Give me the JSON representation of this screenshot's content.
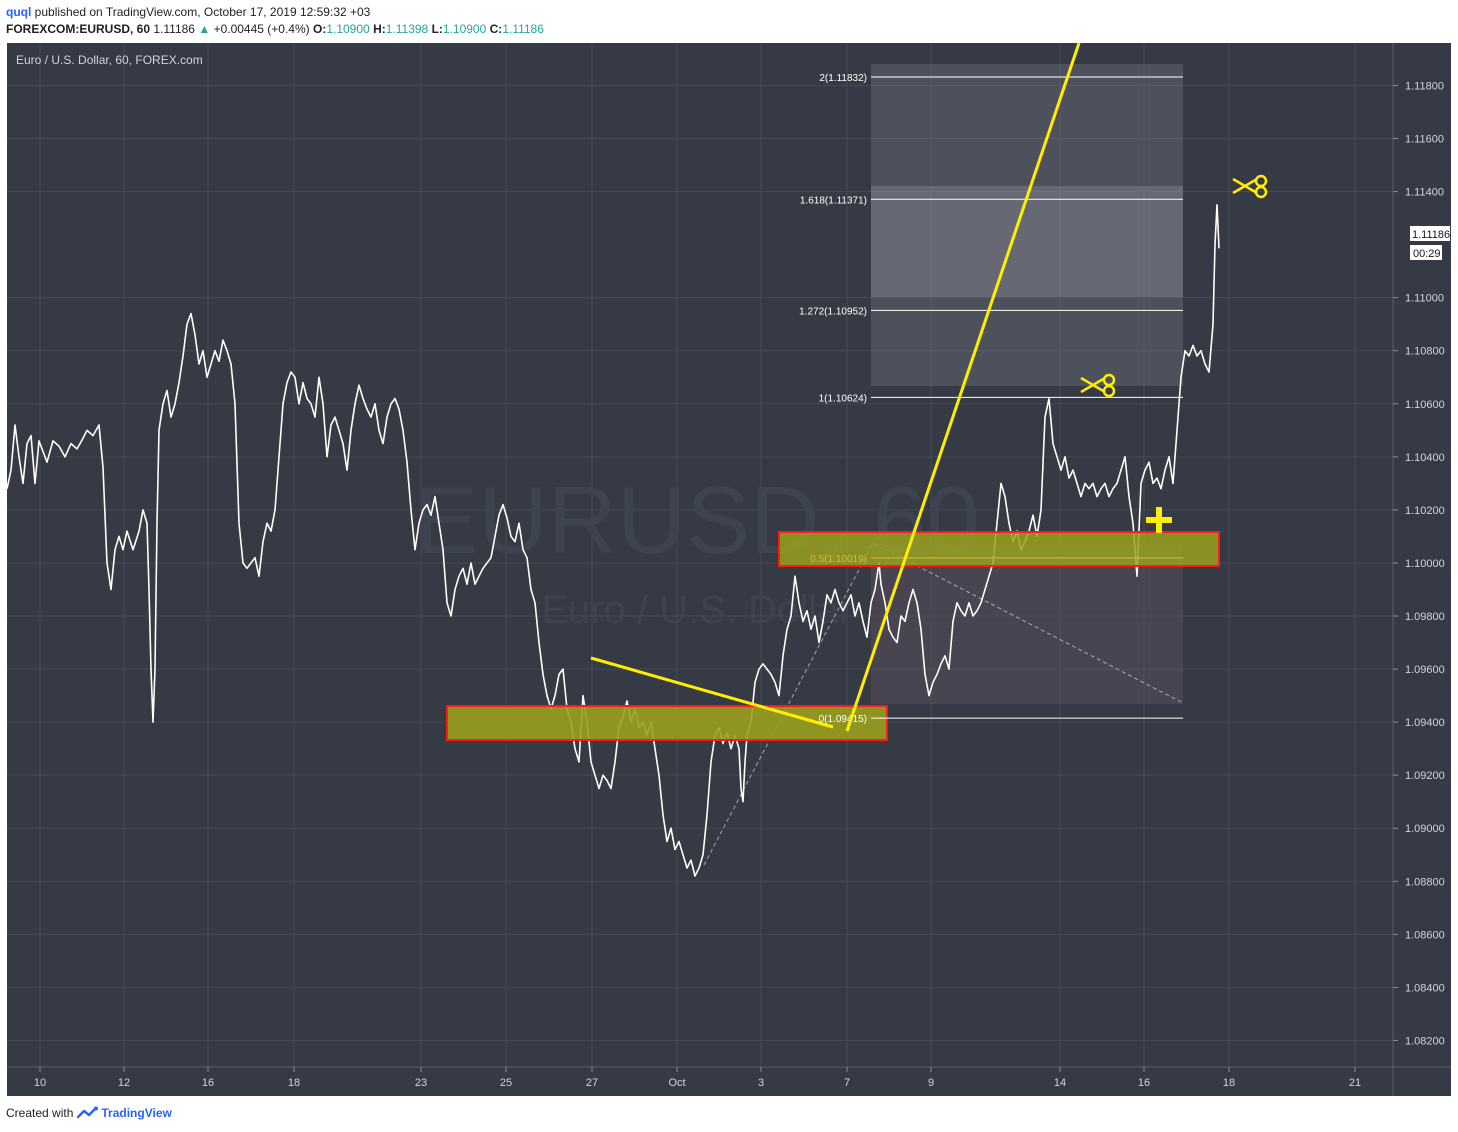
{
  "header": {
    "author": "quql",
    "published_text": "published on TradingView.com, October 17, 2019 12:59:32 +03",
    "symbol": "FOREXCOM:EURUSD, 60",
    "last": "1.11186",
    "change": "+0.00445 (+0.4%)",
    "o_label": "O:",
    "o_value": "1.10900",
    "h_label": "H:",
    "h_value": "1.11398",
    "l_label": "L:",
    "l_value": "1.10900",
    "c_label": "C:",
    "c_value": "1.11186"
  },
  "watermark": {
    "big": "EURUSD, 60",
    "small": "Euro / U.S. Dollar"
  },
  "footer": {
    "created_with": "Created with",
    "brand": "TradingView",
    "logo_icon": "tradingview-logo-icon"
  },
  "colors": {
    "bg": "#363a45",
    "grid": "#4a4f5b",
    "price": "#ffffff",
    "yellow": "#ffee00",
    "zone_fill": "#9aa01e",
    "zone_border": "#ff1a1a"
  },
  "chart_data": {
    "type": "line",
    "title": "Euro / U.S. Dollar, 60, FOREX.com",
    "ylim": [
      1.081,
      1.1196
    ],
    "y_ticks": [
      "1.11800",
      "1.11600",
      "1.11400",
      "1.11000",
      "1.10800",
      "1.10600",
      "1.10400",
      "1.10200",
      "1.10000",
      "1.09800",
      "1.09600",
      "1.09400",
      "1.09200",
      "1.09000",
      "1.08800",
      "1.08600",
      "1.08400",
      "1.08200"
    ],
    "x_ticks": [
      "10",
      "12",
      "16",
      "18",
      "23",
      "25",
      "27",
      "Oct",
      "3",
      "7",
      "9",
      "14",
      "16",
      "18",
      "21"
    ],
    "last_price_label": "1.11186",
    "countdown_label": "00:29",
    "price_series": [
      [
        0,
        1.1028
      ],
      [
        4,
        1.1035
      ],
      [
        8,
        1.1052
      ],
      [
        12,
        1.104
      ],
      [
        16,
        1.103
      ],
      [
        20,
        1.1045
      ],
      [
        24,
        1.1048
      ],
      [
        28,
        1.103
      ],
      [
        32,
        1.1046
      ],
      [
        36,
        1.1042
      ],
      [
        40,
        1.1038
      ],
      [
        46,
        1.1046
      ],
      [
        52,
        1.1044
      ],
      [
        58,
        1.104
      ],
      [
        64,
        1.1045
      ],
      [
        70,
        1.1043
      ],
      [
        76,
        1.1047
      ],
      [
        80,
        1.105
      ],
      [
        86,
        1.1048
      ],
      [
        92,
        1.1052
      ],
      [
        96,
        1.1036
      ],
      [
        100,
        1.1
      ],
      [
        104,
        1.099
      ],
      [
        108,
        1.1005
      ],
      [
        112,
        1.101
      ],
      [
        116,
        1.1005
      ],
      [
        120,
        1.1012
      ],
      [
        126,
        1.1005
      ],
      [
        132,
        1.1012
      ],
      [
        136,
        1.102
      ],
      [
        140,
        1.1015
      ],
      [
        142,
        1.099
      ],
      [
        144,
        1.096
      ],
      [
        146,
        1.094
      ],
      [
        148,
        1.096
      ],
      [
        150,
        1.1015
      ],
      [
        152,
        1.105
      ],
      [
        156,
        1.106
      ],
      [
        160,
        1.1065
      ],
      [
        164,
        1.1055
      ],
      [
        168,
        1.106
      ],
      [
        172,
        1.1068
      ],
      [
        176,
        1.1078
      ],
      [
        180,
        1.109
      ],
      [
        184,
        1.1094
      ],
      [
        188,
        1.1086
      ],
      [
        192,
        1.1075
      ],
      [
        196,
        1.108
      ],
      [
        200,
        1.107
      ],
      [
        204,
        1.1075
      ],
      [
        208,
        1.108
      ],
      [
        212,
        1.1076
      ],
      [
        216,
        1.1084
      ],
      [
        220,
        1.108
      ],
      [
        224,
        1.1075
      ],
      [
        228,
        1.106
      ],
      [
        232,
        1.1015
      ],
      [
        236,
        1.1
      ],
      [
        240,
        1.0998
      ],
      [
        244,
        1.1
      ],
      [
        248,
        1.1002
      ],
      [
        252,
        1.0995
      ],
      [
        256,
        1.1008
      ],
      [
        260,
        1.1015
      ],
      [
        264,
        1.1012
      ],
      [
        268,
        1.102
      ],
      [
        272,
        1.104
      ],
      [
        276,
        1.106
      ],
      [
        280,
        1.1068
      ],
      [
        284,
        1.1072
      ],
      [
        288,
        1.107
      ],
      [
        292,
        1.106
      ],
      [
        296,
        1.1068
      ],
      [
        300,
        1.1062
      ],
      [
        304,
        1.106
      ],
      [
        308,
        1.1055
      ],
      [
        312,
        1.107
      ],
      [
        316,
        1.106
      ],
      [
        320,
        1.104
      ],
      [
        324,
        1.1052
      ],
      [
        328,
        1.1055
      ],
      [
        332,
        1.105
      ],
      [
        336,
        1.1045
      ],
      [
        340,
        1.1035
      ],
      [
        344,
        1.105
      ],
      [
        348,
        1.106
      ],
      [
        352,
        1.1067
      ],
      [
        356,
        1.1062
      ],
      [
        360,
        1.1058
      ],
      [
        364,
        1.1055
      ],
      [
        368,
        1.106
      ],
      [
        372,
        1.105
      ],
      [
        376,
        1.1045
      ],
      [
        380,
        1.1055
      ],
      [
        384,
        1.106
      ],
      [
        388,
        1.1062
      ],
      [
        392,
        1.1058
      ],
      [
        396,
        1.105
      ],
      [
        400,
        1.1038
      ],
      [
        404,
        1.102
      ],
      [
        408,
        1.1005
      ],
      [
        412,
        1.1015
      ],
      [
        416,
        1.102
      ],
      [
        420,
        1.1022
      ],
      [
        424,
        1.1018
      ],
      [
        428,
        1.1025
      ],
      [
        432,
        1.1015
      ],
      [
        436,
        1.1005
      ],
      [
        440,
        1.0985
      ],
      [
        444,
        1.098
      ],
      [
        448,
        1.099
      ],
      [
        452,
        1.0995
      ],
      [
        456,
        1.0998
      ],
      [
        460,
        1.0992
      ],
      [
        464,
        1.1
      ],
      [
        468,
        1.0992
      ],
      [
        472,
        1.0995
      ],
      [
        476,
        1.0998
      ],
      [
        480,
        1.1
      ],
      [
        484,
        1.1002
      ],
      [
        488,
        1.101
      ],
      [
        492,
        1.1018
      ],
      [
        496,
        1.1022
      ],
      [
        500,
        1.1017
      ],
      [
        504,
        1.101
      ],
      [
        508,
        1.1008
      ],
      [
        512,
        1.1015
      ],
      [
        516,
        1.1005
      ],
      [
        520,
        1.1002
      ],
      [
        524,
        1.099
      ],
      [
        528,
        1.0985
      ],
      [
        532,
        1.097
      ],
      [
        536,
        1.0958
      ],
      [
        540,
        1.095
      ],
      [
        544,
        1.0945
      ],
      [
        548,
        1.095
      ],
      [
        552,
        1.0958
      ],
      [
        556,
        1.096
      ],
      [
        560,
        1.0945
      ],
      [
        564,
        1.094
      ],
      [
        568,
        1.093
      ],
      [
        572,
        1.0925
      ],
      [
        576,
        1.095
      ],
      [
        580,
        1.094
      ],
      [
        584,
        1.0925
      ],
      [
        588,
        1.092
      ],
      [
        592,
        1.0915
      ],
      [
        596,
        1.092
      ],
      [
        600,
        1.0918
      ],
      [
        604,
        1.0915
      ],
      [
        608,
        1.0925
      ],
      [
        612,
        1.0938
      ],
      [
        616,
        1.0942
      ],
      [
        620,
        1.0948
      ],
      [
        624,
        1.094
      ],
      [
        628,
        1.0945
      ],
      [
        632,
        1.0938
      ],
      [
        636,
        1.094
      ],
      [
        640,
        1.0935
      ],
      [
        644,
        1.094
      ],
      [
        648,
        1.093
      ],
      [
        652,
        1.092
      ],
      [
        656,
        1.0905
      ],
      [
        660,
        1.0895
      ],
      [
        664,
        1.09
      ],
      [
        668,
        1.0892
      ],
      [
        672,
        1.0895
      ],
      [
        676,
        1.089
      ],
      [
        680,
        1.0885
      ],
      [
        684,
        1.0888
      ],
      [
        688,
        1.0882
      ],
      [
        692,
        1.0885
      ],
      [
        696,
        1.089
      ],
      [
        700,
        1.0905
      ],
      [
        704,
        1.0925
      ],
      [
        708,
        1.0935
      ],
      [
        712,
        1.0938
      ],
      [
        716,
        1.0932
      ],
      [
        720,
        1.0936
      ],
      [
        724,
        1.093
      ],
      [
        728,
        1.0935
      ],
      [
        732,
        1.093
      ],
      [
        734,
        1.0915
      ],
      [
        736,
        1.091
      ],
      [
        738,
        1.0925
      ],
      [
        740,
        1.0935
      ],
      [
        744,
        1.094
      ],
      [
        748,
        1.0955
      ],
      [
        752,
        1.096
      ],
      [
        756,
        1.0962
      ],
      [
        760,
        1.096
      ],
      [
        764,
        1.0958
      ],
      [
        768,
        1.0955
      ],
      [
        772,
        1.095
      ],
      [
        776,
        1.0965
      ],
      [
        780,
        1.0975
      ],
      [
        784,
        1.098
      ],
      [
        788,
        1.0995
      ],
      [
        792,
        1.0985
      ],
      [
        796,
        1.0978
      ],
      [
        800,
        1.0982
      ],
      [
        804,
        1.0975
      ],
      [
        808,
        1.098
      ],
      [
        812,
        1.097
      ],
      [
        816,
        1.0978
      ],
      [
        820,
        1.0988
      ],
      [
        824,
        1.0985
      ],
      [
        828,
        1.099
      ],
      [
        832,
        1.0985
      ],
      [
        836,
        1.0982
      ],
      [
        840,
        1.0985
      ],
      [
        844,
        1.0988
      ],
      [
        848,
        1.098
      ],
      [
        852,
        1.0985
      ],
      [
        856,
        1.0978
      ],
      [
        860,
        1.0972
      ],
      [
        864,
        1.0985
      ],
      [
        868,
        1.099
      ],
      [
        872,
        1.1
      ],
      [
        874,
        1.0992
      ],
      [
        878,
        1.0985
      ],
      [
        882,
        1.0975
      ],
      [
        886,
        1.0972
      ],
      [
        890,
        1.097
      ],
      [
        894,
        1.098
      ],
      [
        898,
        1.0978
      ],
      [
        902,
        1.0985
      ],
      [
        906,
        1.099
      ],
      [
        910,
        1.0985
      ],
      [
        914,
        1.0975
      ],
      [
        918,
        1.0958
      ],
      [
        922,
        1.095
      ],
      [
        926,
        1.0955
      ],
      [
        930,
        1.0958
      ],
      [
        934,
        1.0962
      ],
      [
        938,
        1.0965
      ],
      [
        942,
        1.096
      ],
      [
        946,
        1.0978
      ],
      [
        950,
        1.0985
      ],
      [
        954,
        1.0982
      ],
      [
        958,
        1.098
      ],
      [
        962,
        1.0985
      ],
      [
        966,
        1.098
      ],
      [
        970,
        1.0982
      ],
      [
        974,
        1.0985
      ],
      [
        978,
        1.099
      ],
      [
        982,
        1.0995
      ],
      [
        986,
        1.1
      ],
      [
        990,
        1.1015
      ],
      [
        994,
        1.103
      ],
      [
        998,
        1.1025
      ],
      [
        1002,
        1.1015
      ],
      [
        1006,
        1.1008
      ],
      [
        1010,
        1.1012
      ],
      [
        1014,
        1.1005
      ],
      [
        1018,
        1.1008
      ],
      [
        1022,
        1.1012
      ],
      [
        1026,
        1.1018
      ],
      [
        1030,
        1.101
      ],
      [
        1034,
        1.102
      ],
      [
        1038,
        1.1055
      ],
      [
        1042,
        1.1062
      ],
      [
        1046,
        1.1045
      ],
      [
        1050,
        1.104
      ],
      [
        1054,
        1.1035
      ],
      [
        1058,
        1.104
      ],
      [
        1062,
        1.1032
      ],
      [
        1066,
        1.1035
      ],
      [
        1070,
        1.103
      ],
      [
        1074,
        1.1025
      ],
      [
        1078,
        1.103
      ],
      [
        1082,
        1.1028
      ],
      [
        1086,
        1.103
      ],
      [
        1090,
        1.1025
      ],
      [
        1094,
        1.1028
      ],
      [
        1098,
        1.103
      ],
      [
        1102,
        1.1025
      ],
      [
        1106,
        1.1028
      ],
      [
        1110,
        1.103
      ],
      [
        1114,
        1.1035
      ],
      [
        1118,
        1.104
      ],
      [
        1122,
        1.1025
      ],
      [
        1126,
        1.1015
      ],
      [
        1130,
        1.0995
      ],
      [
        1134,
        1.103
      ],
      [
        1138,
        1.1035
      ],
      [
        1142,
        1.1038
      ],
      [
        1146,
        1.103
      ],
      [
        1150,
        1.1032
      ],
      [
        1154,
        1.1028
      ],
      [
        1158,
        1.1035
      ],
      [
        1162,
        1.104
      ],
      [
        1166,
        1.103
      ],
      [
        1170,
        1.105
      ],
      [
        1174,
        1.107
      ],
      [
        1178,
        1.108
      ],
      [
        1182,
        1.1078
      ],
      [
        1186,
        1.1082
      ],
      [
        1190,
        1.1078
      ],
      [
        1194,
        1.108
      ],
      [
        1198,
        1.1075
      ],
      [
        1202,
        1.1072
      ],
      [
        1206,
        1.109
      ],
      [
        1208,
        1.112
      ],
      [
        1210,
        1.1135
      ],
      [
        1212,
        1.11186
      ]
    ],
    "fib_levels": [
      {
        "label": "2(1.11832)",
        "value": 1.11832
      },
      {
        "label": "1.618(1.11371)",
        "value": 1.11371
      },
      {
        "label": "1.272(1.10952)",
        "value": 1.10952
      },
      {
        "label": "1(1.10624)",
        "value": 1.10624
      },
      {
        "label": "0.5(1.10019)",
        "value": 1.10019
      },
      {
        "label": "0(1.09415)",
        "value": 1.09415
      }
    ]
  }
}
